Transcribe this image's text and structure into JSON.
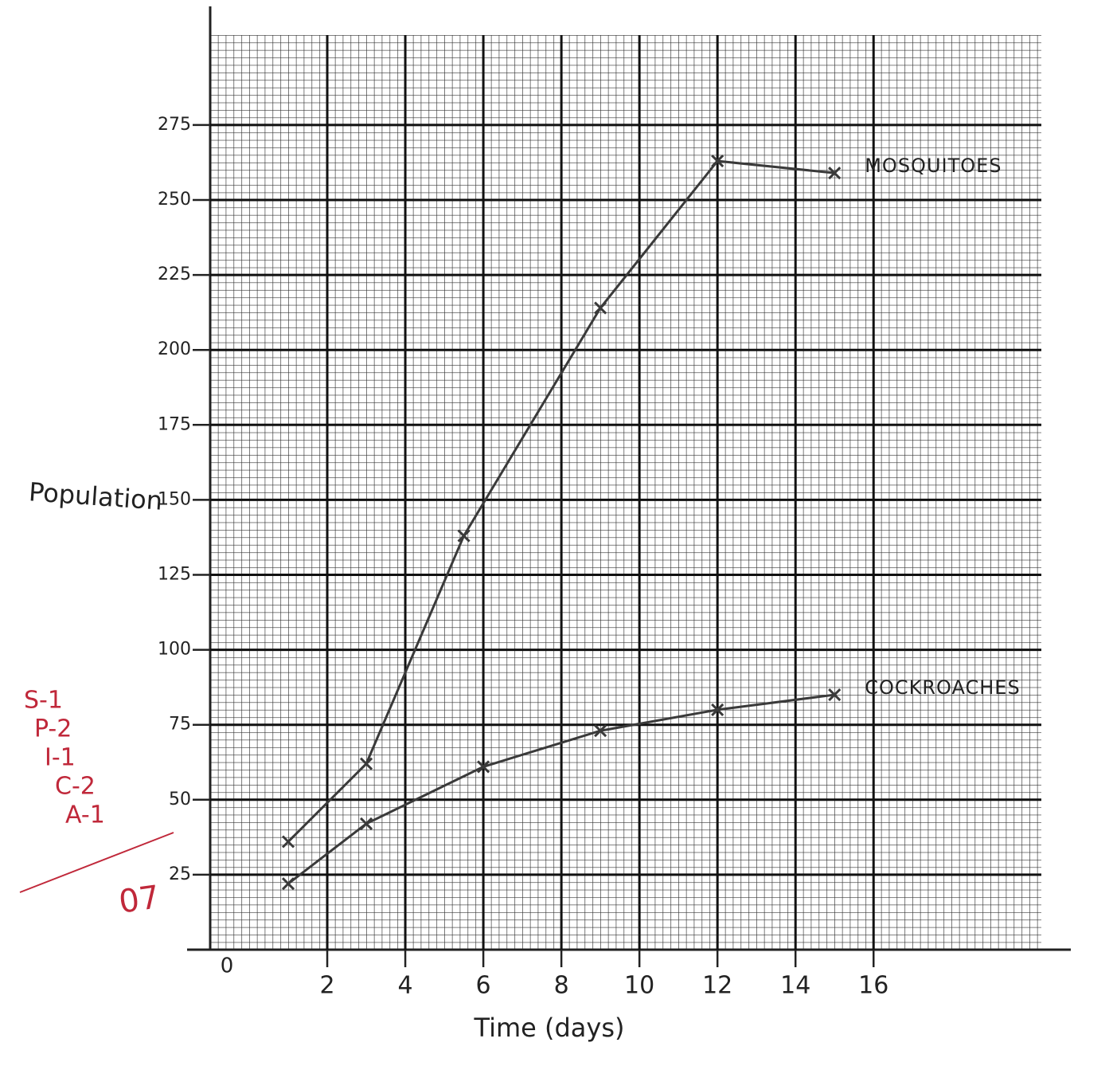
{
  "chart_data": {
    "type": "line",
    "x_label": "Time (days)",
    "y_label": "Population",
    "origin_label": "0",
    "series": [
      {
        "name": "MOSQUITOES",
        "color": "#3a3a3a",
        "x": [
          1,
          3,
          5.5,
          9,
          12,
          15
        ],
        "values": [
          36,
          62,
          138,
          214,
          263,
          259
        ]
      },
      {
        "name": "COCKROACHES",
        "color": "#3a3a3a",
        "x": [
          1,
          3,
          6,
          9,
          12,
          15
        ],
        "values": [
          22,
          42,
          61,
          73,
          80,
          85
        ]
      }
    ],
    "xlim": [
      -1,
      20.3
    ],
    "ylim": [
      0,
      305
    ],
    "xticks": [
      2,
      4,
      6,
      8,
      10,
      12,
      14,
      16
    ],
    "yticks": [
      25,
      50,
      75,
      100,
      125,
      150,
      175,
      200,
      225,
      250,
      275
    ],
    "grid": true,
    "annotations": [
      "S-1",
      "P-2",
      "I-1",
      "C-2",
      "A-1",
      "07"
    ],
    "annotation_color": "#c0283a"
  }
}
